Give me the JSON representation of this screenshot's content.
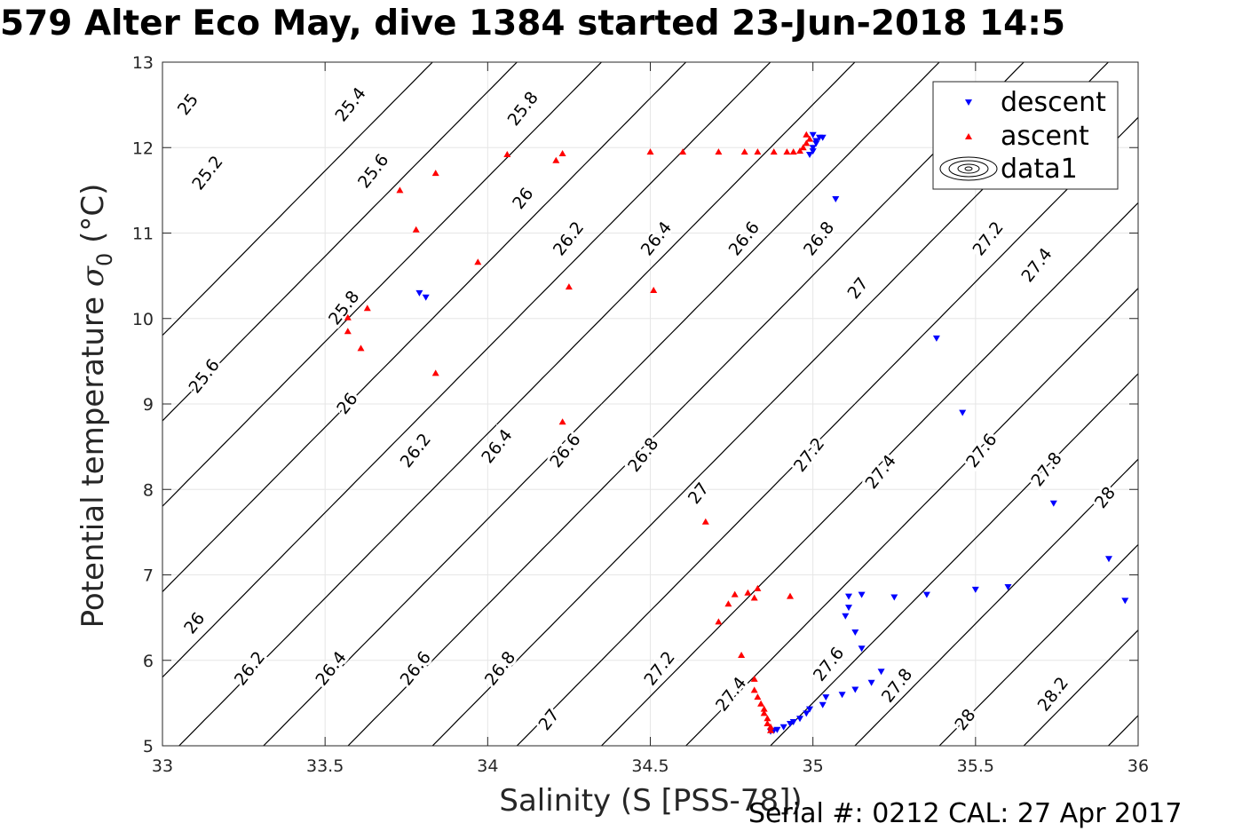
{
  "chart_data": {
    "type": "scatter",
    "title": "579 Alter Eco May, dive 1384 started 23-Jun-2018 14:5",
    "xlabel": "Salinity (S [PSS-78])",
    "ylabel_main": "Potential temperature ",
    "ylabel_sigma": "σ",
    "ylabel_sub": "0",
    "ylabel_unit": " (°C)",
    "xlim": [
      33,
      36
    ],
    "ylim": [
      5,
      13
    ],
    "xticks": [
      33,
      33.5,
      34,
      34.5,
      35,
      35.5,
      36
    ],
    "xtick_labels": [
      "33",
      "33.5",
      "34",
      "34.5",
      "35",
      "35.5",
      "36"
    ],
    "yticks": [
      5,
      6,
      7,
      8,
      9,
      10,
      11,
      12,
      13
    ],
    "ytick_labels": [
      "5",
      "6",
      "7",
      "8",
      "9",
      "10",
      "11",
      "12",
      "13"
    ],
    "grid": true,
    "legend_position": "top-right",
    "footer": "Serial #: 0212  CAL: 27 Apr 2017",
    "series": [
      {
        "name": "descent",
        "marker": "triangle-down",
        "color": "#0000ff",
        "points": [
          [
            33.79,
            10.3
          ],
          [
            33.81,
            10.25
          ],
          [
            35.07,
            11.4
          ],
          [
            35.38,
            9.77
          ],
          [
            35.46,
            8.9
          ],
          [
            35.74,
            7.84
          ],
          [
            35.91,
            7.19
          ],
          [
            35.96,
            6.7
          ],
          [
            35.6,
            6.86
          ],
          [
            35.5,
            6.83
          ],
          [
            35.35,
            6.77
          ],
          [
            35.25,
            6.74
          ],
          [
            35.15,
            6.77
          ],
          [
            35.11,
            6.75
          ],
          [
            35.11,
            6.62
          ],
          [
            35.1,
            6.52
          ],
          [
            35.13,
            6.33
          ],
          [
            35.15,
            6.14
          ],
          [
            35.21,
            5.87
          ],
          [
            35.18,
            5.74
          ],
          [
            35.13,
            5.66
          ],
          [
            35.09,
            5.6
          ],
          [
            35.04,
            5.57
          ],
          [
            35.03,
            5.48
          ],
          [
            34.99,
            5.43
          ],
          [
            34.98,
            5.38
          ],
          [
            34.96,
            5.32
          ],
          [
            34.94,
            5.28
          ],
          [
            34.93,
            5.26
          ],
          [
            34.91,
            5.22
          ],
          [
            34.89,
            5.19
          ],
          [
            34.88,
            5.18
          ],
          [
            34.87,
            5.17
          ],
          [
            34.99,
            11.92
          ],
          [
            35.0,
            11.96
          ],
          [
            35.0,
            12.0
          ],
          [
            35.01,
            12.05
          ],
          [
            35.01,
            12.08
          ],
          [
            35.02,
            12.12
          ],
          [
            35.03,
            12.12
          ],
          [
            35.0,
            12.15
          ]
        ]
      },
      {
        "name": "ascent",
        "marker": "triangle-up",
        "color": "#ff0000",
        "points": [
          [
            33.73,
            11.5
          ],
          [
            33.84,
            11.7
          ],
          [
            33.78,
            11.04
          ],
          [
            33.97,
            10.66
          ],
          [
            34.06,
            11.92
          ],
          [
            34.21,
            11.85
          ],
          [
            34.23,
            11.93
          ],
          [
            34.25,
            10.37
          ],
          [
            34.5,
            11.95
          ],
          [
            34.51,
            10.33
          ],
          [
            34.6,
            11.95
          ],
          [
            34.71,
            11.95
          ],
          [
            34.79,
            11.95
          ],
          [
            34.83,
            11.95
          ],
          [
            34.88,
            11.95
          ],
          [
            34.92,
            11.95
          ],
          [
            34.94,
            11.95
          ],
          [
            34.96,
            11.96
          ],
          [
            34.97,
            12.0
          ],
          [
            34.98,
            12.05
          ],
          [
            34.99,
            12.1
          ],
          [
            34.98,
            12.15
          ],
          [
            33.57,
            10.01
          ],
          [
            33.57,
            9.85
          ],
          [
            33.61,
            9.65
          ],
          [
            33.63,
            10.12
          ],
          [
            33.84,
            9.36
          ],
          [
            34.23,
            8.79
          ],
          [
            34.67,
            7.62
          ],
          [
            34.71,
            6.45
          ],
          [
            34.74,
            6.66
          ],
          [
            34.76,
            6.77
          ],
          [
            34.8,
            6.79
          ],
          [
            34.82,
            6.73
          ],
          [
            34.83,
            6.84
          ],
          [
            34.93,
            6.75
          ],
          [
            34.78,
            6.06
          ],
          [
            34.82,
            5.78
          ],
          [
            34.82,
            5.65
          ],
          [
            34.83,
            5.57
          ],
          [
            34.84,
            5.49
          ],
          [
            34.85,
            5.43
          ],
          [
            34.85,
            5.38
          ],
          [
            34.86,
            5.32
          ],
          [
            34.86,
            5.26
          ],
          [
            34.87,
            5.22
          ],
          [
            34.87,
            5.18
          ]
        ]
      },
      {
        "name": "data1",
        "marker": "contour",
        "contour_levels": [
          25,
          25.2,
          25.4,
          25.6,
          25.8,
          26,
          26.2,
          26.4,
          26.6,
          26.8,
          27,
          27.2,
          27.4,
          27.6,
          27.8,
          28,
          28.2
        ],
        "contour_labels": [
          {
            "text": "25",
            "s": 33.08,
            "t": 12.5
          },
          {
            "text": "25.4",
            "s": 33.58,
            "t": 12.5
          },
          {
            "text": "25.8",
            "s": 34.11,
            "t": 12.45
          },
          {
            "text": "25.2",
            "s": 33.14,
            "t": 11.7
          },
          {
            "text": "25.6",
            "s": 33.65,
            "t": 11.72
          },
          {
            "text": "26",
            "s": 34.11,
            "t": 11.4
          },
          {
            "text": "26.2",
            "s": 34.25,
            "t": 10.93
          },
          {
            "text": "26.4",
            "s": 34.52,
            "t": 10.93
          },
          {
            "text": "26.6",
            "s": 34.79,
            "t": 10.93
          },
          {
            "text": "26.8",
            "s": 35.02,
            "t": 10.93
          },
          {
            "text": "27",
            "s": 35.14,
            "t": 10.35
          },
          {
            "text": "27.2",
            "s": 35.54,
            "t": 10.93
          },
          {
            "text": "27.4",
            "s": 35.69,
            "t": 10.62
          },
          {
            "text": "25.8",
            "s": 33.56,
            "t": 10.12
          },
          {
            "text": "25.6",
            "s": 33.13,
            "t": 9.32
          },
          {
            "text": "26",
            "s": 33.57,
            "t": 9.0
          },
          {
            "text": "26.2",
            "s": 33.78,
            "t": 8.45
          },
          {
            "text": "26.4",
            "s": 34.03,
            "t": 8.5
          },
          {
            "text": "26.6",
            "s": 34.24,
            "t": 8.45
          },
          {
            "text": "26.8",
            "s": 34.48,
            "t": 8.4
          },
          {
            "text": "27.2",
            "s": 34.99,
            "t": 8.4
          },
          {
            "text": "27.4",
            "s": 35.21,
            "t": 8.2
          },
          {
            "text": "27.6",
            "s": 35.52,
            "t": 8.45
          },
          {
            "text": "27.8",
            "s": 35.72,
            "t": 8.23
          },
          {
            "text": "28",
            "s": 35.9,
            "t": 7.9
          },
          {
            "text": "27",
            "s": 34.65,
            "t": 7.95
          },
          {
            "text": "26",
            "s": 33.1,
            "t": 6.43
          },
          {
            "text": "26.2",
            "s": 33.27,
            "t": 5.9
          },
          {
            "text": "26.4",
            "s": 33.52,
            "t": 5.9
          },
          {
            "text": "26.6",
            "s": 33.78,
            "t": 5.9
          },
          {
            "text": "26.8",
            "s": 34.04,
            "t": 5.9
          },
          {
            "text": "27",
            "s": 34.19,
            "t": 5.3
          },
          {
            "text": "27.2",
            "s": 34.53,
            "t": 5.9
          },
          {
            "text": "27.4",
            "s": 34.75,
            "t": 5.6
          },
          {
            "text": "27.6",
            "s": 35.05,
            "t": 5.95
          },
          {
            "text": "27.8",
            "s": 35.26,
            "t": 5.7
          },
          {
            "text": "28",
            "s": 35.47,
            "t": 5.3
          },
          {
            "text": "28.2",
            "s": 35.74,
            "t": 5.6
          }
        ]
      }
    ]
  }
}
